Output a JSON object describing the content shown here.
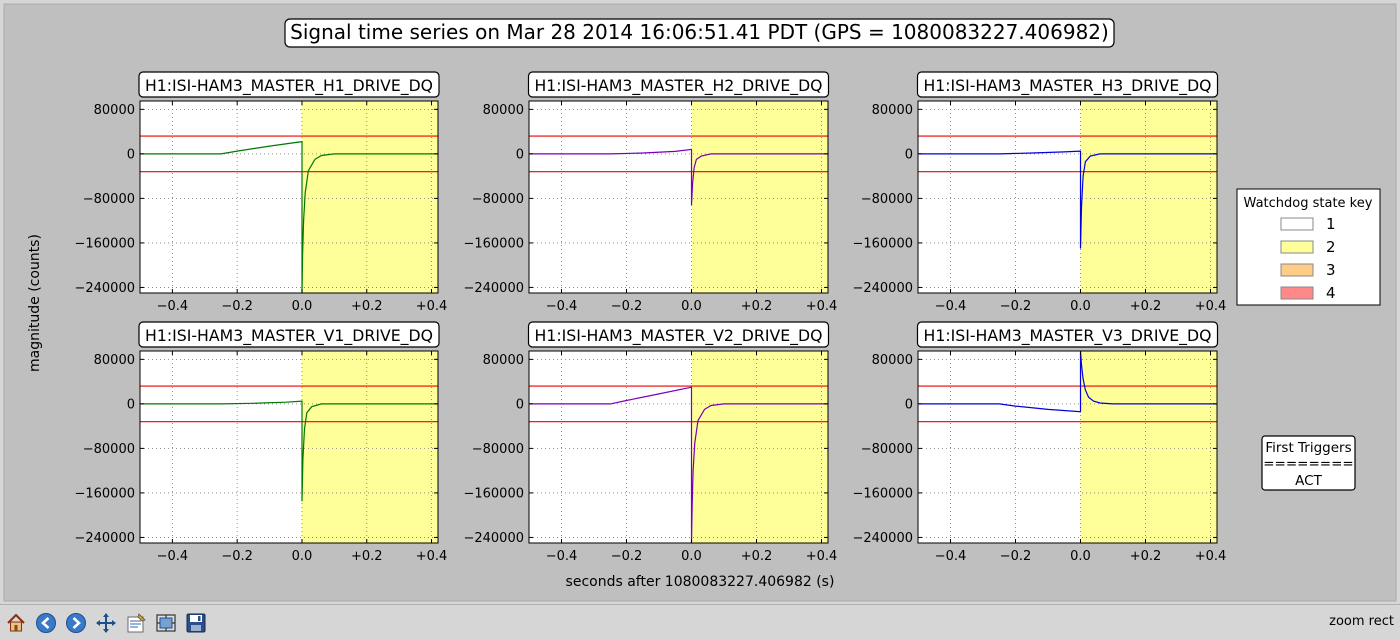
{
  "figure": {
    "title": "Signal time series on Mar 28 2014 16:06:51.41 PDT (GPS = 1080083227.406982)",
    "ylabel": "magnitude (counts)",
    "xlabel": "seconds after 1080083227.406982 (s)",
    "background": "#bfbfbf"
  },
  "legend": {
    "title": "Watchdog state key",
    "entries": [
      {
        "label": "1",
        "color": "#ffffff"
      },
      {
        "label": "2",
        "color": "#ffff99"
      },
      {
        "label": "3",
        "color": "#ffcc88"
      },
      {
        "label": "4",
        "color": "#ff8888"
      }
    ]
  },
  "triggers": {
    "title": "First Triggers",
    "rule": "========",
    "value": "ACT"
  },
  "toolbar": {
    "buttons": [
      "home-icon",
      "back-icon",
      "forward-icon",
      "pan-icon",
      "configure-icon",
      "subplots-icon",
      "save-icon"
    ],
    "status": "zoom rect"
  },
  "chart_data": [
    {
      "type": "line",
      "title": "H1:ISI-HAM3_MASTER_H1_DRIVE_DQ",
      "color": "#007700",
      "xlim": [
        -0.5,
        0.42
      ],
      "ylim": [
        -250000,
        95000
      ],
      "xticks": [
        -0.4,
        -0.2,
        0.0,
        0.2,
        0.4
      ],
      "xticklabels": [
        "−0.4",
        "−0.2",
        "0.0",
        "+0.2",
        "+0.4"
      ],
      "yticks": [
        80000,
        0,
        -80000,
        -160000,
        -240000
      ],
      "yticklabels": [
        "80000",
        "0",
        "−80000",
        "−160000",
        "−240000"
      ],
      "thresholds": [
        32000,
        -32000
      ],
      "state_region": {
        "x": [
          0.0,
          0.42
        ],
        "state": "2"
      },
      "x": [
        -0.5,
        -0.25,
        -0.2,
        -0.1,
        0.0,
        0.0,
        0.002,
        0.005,
        0.01,
        0.02,
        0.04,
        0.06,
        0.1,
        0.42
      ],
      "y": [
        0,
        0,
        5000,
        14000,
        22000,
        -250000,
        -180000,
        -120000,
        -70000,
        -30000,
        -10000,
        -3000,
        0,
        0
      ]
    },
    {
      "type": "line",
      "title": "H1:ISI-HAM3_MASTER_H2_DRIVE_DQ",
      "color": "#7700bb",
      "xlim": [
        -0.5,
        0.42
      ],
      "ylim": [
        -250000,
        95000
      ],
      "xticks": [
        -0.4,
        -0.2,
        0.0,
        0.2,
        0.4
      ],
      "xticklabels": [
        "−0.4",
        "−0.2",
        "0.0",
        "+0.2",
        "+0.4"
      ],
      "yticks": [
        80000,
        0,
        -80000,
        -160000,
        -240000
      ],
      "yticklabels": [
        "80000",
        "0",
        "−80000",
        "−160000",
        "−240000"
      ],
      "thresholds": [
        32000,
        -32000
      ],
      "state_region": {
        "x": [
          0.0,
          0.42
        ],
        "state": "2"
      },
      "x": [
        -0.5,
        -0.25,
        -0.15,
        -0.05,
        0.0,
        0.0,
        0.003,
        0.008,
        0.015,
        0.03,
        0.06,
        0.42
      ],
      "y": [
        0,
        0,
        1500,
        4500,
        8000,
        -92000,
        -55000,
        -25000,
        -10000,
        -4000,
        0,
        0
      ]
    },
    {
      "type": "line",
      "title": "H1:ISI-HAM3_MASTER_H3_DRIVE_DQ",
      "color": "#0000dd",
      "xlim": [
        -0.5,
        0.42
      ],
      "ylim": [
        -250000,
        95000
      ],
      "xticks": [
        -0.4,
        -0.2,
        0.0,
        0.2,
        0.4
      ],
      "xticklabels": [
        "−0.4",
        "−0.2",
        "0.0",
        "+0.2",
        "+0.4"
      ],
      "yticks": [
        80000,
        0,
        -80000,
        -160000,
        -240000
      ],
      "yticklabels": [
        "80000",
        "0",
        "−80000",
        "−160000",
        "−240000"
      ],
      "thresholds": [
        32000,
        -32000
      ],
      "state_region": {
        "x": [
          0.0,
          0.42
        ],
        "state": "2"
      },
      "x": [
        -0.5,
        -0.25,
        -0.15,
        -0.05,
        0.0,
        0.0,
        0.003,
        0.008,
        0.015,
        0.03,
        0.06,
        0.42
      ],
      "y": [
        0,
        0,
        1500,
        3500,
        5000,
        -170000,
        -95000,
        -40000,
        -14000,
        -4000,
        0,
        0
      ]
    },
    {
      "type": "line",
      "title": "H1:ISI-HAM3_MASTER_V1_DRIVE_DQ",
      "color": "#007700",
      "xlim": [
        -0.5,
        0.42
      ],
      "ylim": [
        -250000,
        95000
      ],
      "xticks": [
        -0.4,
        -0.2,
        0.0,
        0.2,
        0.4
      ],
      "xticklabels": [
        "−0.4",
        "−0.2",
        "0.0",
        "+0.2",
        "+0.4"
      ],
      "yticks": [
        80000,
        0,
        -80000,
        -160000,
        -240000
      ],
      "yticklabels": [
        "80000",
        "0",
        "−80000",
        "−160000",
        "−240000"
      ],
      "thresholds": [
        32000,
        -32000
      ],
      "state_region": {
        "x": [
          0.0,
          0.42
        ],
        "state": "2"
      },
      "x": [
        -0.5,
        -0.25,
        -0.15,
        -0.05,
        0.0,
        0.0,
        0.003,
        0.008,
        0.015,
        0.03,
        0.06,
        0.42
      ],
      "y": [
        0,
        0,
        1000,
        3000,
        5000,
        -175000,
        -100000,
        -45000,
        -16000,
        -5000,
        0,
        0
      ]
    },
    {
      "type": "line",
      "title": "H1:ISI-HAM3_MASTER_V2_DRIVE_DQ",
      "color": "#7700bb",
      "xlim": [
        -0.5,
        0.42
      ],
      "ylim": [
        -250000,
        95000
      ],
      "xticks": [
        -0.4,
        -0.2,
        0.0,
        0.2,
        0.4
      ],
      "xticklabels": [
        "−0.4",
        "−0.2",
        "0.0",
        "+0.2",
        "+0.4"
      ],
      "yticks": [
        80000,
        0,
        -80000,
        -160000,
        -240000
      ],
      "yticklabels": [
        "80000",
        "0",
        "−80000",
        "−160000",
        "−240000"
      ],
      "thresholds": [
        32000,
        -32000
      ],
      "state_region": {
        "x": [
          0.0,
          0.42
        ],
        "state": "2"
      },
      "x": [
        -0.5,
        -0.25,
        -0.2,
        -0.1,
        0.0,
        0.0,
        0.002,
        0.005,
        0.01,
        0.02,
        0.04,
        0.06,
        0.1,
        0.42
      ],
      "y": [
        0,
        0,
        6000,
        18000,
        30000,
        -250000,
        -180000,
        -120000,
        -70000,
        -30000,
        -10000,
        -3000,
        0,
        0
      ]
    },
    {
      "type": "line",
      "title": "H1:ISI-HAM3_MASTER_V3_DRIVE_DQ",
      "color": "#0000dd",
      "xlim": [
        -0.5,
        0.42
      ],
      "ylim": [
        -250000,
        95000
      ],
      "xticks": [
        -0.4,
        -0.2,
        0.0,
        0.2,
        0.4
      ],
      "xticklabels": [
        "−0.4",
        "−0.2",
        "0.0",
        "+0.2",
        "+0.4"
      ],
      "yticks": [
        80000,
        0,
        -80000,
        -160000,
        -240000
      ],
      "yticklabels": [
        "80000",
        "0",
        "−80000",
        "−160000",
        "−240000"
      ],
      "thresholds": [
        32000,
        -32000
      ],
      "state_region": {
        "x": [
          0.0,
          0.42
        ],
        "state": "2"
      },
      "x": [
        -0.5,
        -0.25,
        -0.2,
        -0.1,
        0.0,
        0.0,
        0.003,
        0.008,
        0.015,
        0.025,
        0.04,
        0.06,
        0.1,
        0.42
      ],
      "y": [
        0,
        0,
        -4000,
        -10000,
        -14000,
        95000,
        70000,
        45000,
        25000,
        12000,
        5000,
        1500,
        0,
        0
      ]
    }
  ]
}
